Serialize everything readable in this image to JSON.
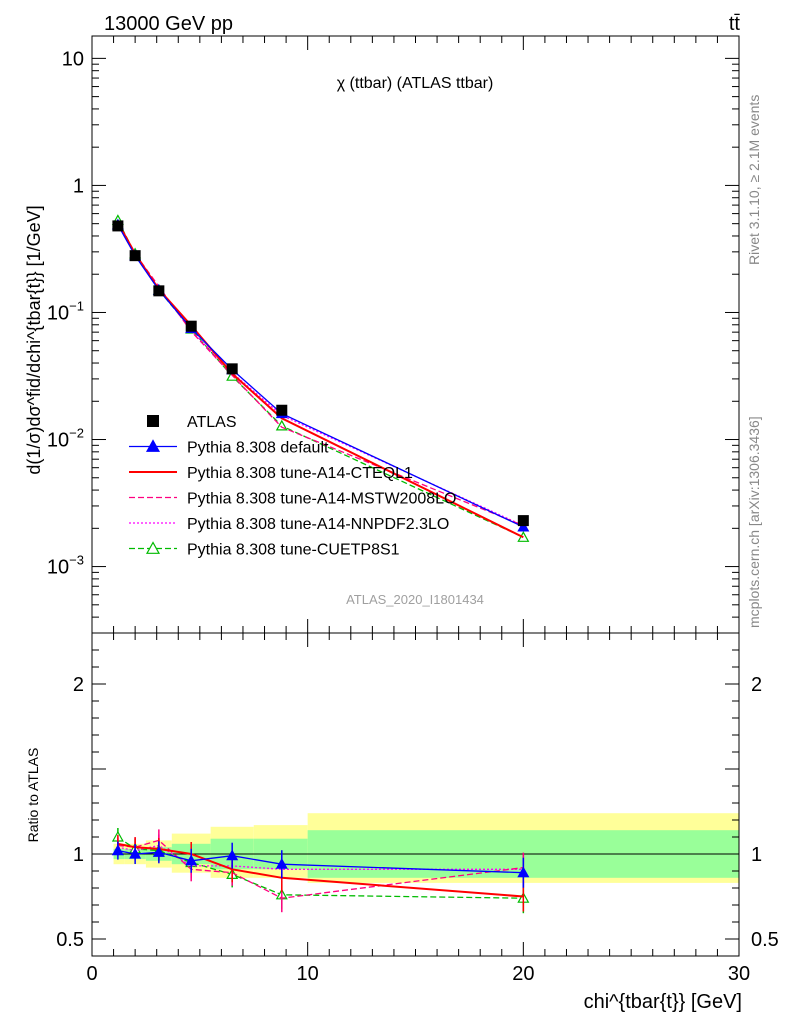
{
  "header": {
    "energy_label": "13000 GeV pp",
    "process_label": "tt̄"
  },
  "side_labels": {
    "rivet": "Rivet 3.1.10, ≥ 2.1M events",
    "mcplots": "mcplots.cern.ch [arXiv:1306.3436]"
  },
  "chart_data": [
    {
      "type": "line",
      "panel": "main",
      "title": "χ (ttbar) (ATLAS ttbar)",
      "watermark": "ATLAS_2020_I1801434",
      "ylabel": "d(1/σ)dσ^fid/dchi^{tbar{t}} [1/GeV]",
      "yscale": "log",
      "xlim": [
        0,
        30
      ],
      "ylim": [
        0.0003,
        15
      ],
      "yticks": [
        {
          "v": 10,
          "label": "10"
        },
        {
          "v": 1,
          "label": "1"
        },
        {
          "v": 0.1,
          "label": "10^-1"
        },
        {
          "v": 0.01,
          "label": "10^-2"
        },
        {
          "v": 0.001,
          "label": "10^-3"
        }
      ],
      "legend_position": "bottom-left",
      "data": {
        "x": [
          1.2,
          2.0,
          3.1,
          4.6,
          6.5,
          8.8,
          20.0
        ],
        "xerr": [
          [
            1.0,
            1.5
          ],
          [
            1.5,
            2.5
          ],
          [
            2.5,
            3.7
          ],
          [
            3.7,
            5.5
          ],
          [
            5.5,
            7.5
          ],
          [
            7.5,
            10.0
          ],
          [
            10.0,
            30.0
          ]
        ],
        "atlas": [
          0.48,
          0.28,
          0.148,
          0.078,
          0.036,
          0.017,
          0.0023
        ]
      },
      "series": [
        {
          "name": "ATLAS",
          "key": "atlas",
          "color": "#000000",
          "marker": "square",
          "line": "none"
        },
        {
          "name": "Pythia 8.308 default",
          "key": "default",
          "color": "#0000ff",
          "marker": "triangle",
          "line": "solid",
          "values": [
            0.49,
            0.28,
            0.15,
            0.075,
            0.0355,
            0.016,
            0.00205
          ]
        },
        {
          "name": "Pythia 8.308 tune-A14-CTEQL1",
          "key": "cteql1",
          "color": "#ff0000",
          "marker": "none",
          "line": "solid",
          "values": [
            0.51,
            0.29,
            0.152,
            0.079,
            0.033,
            0.0147,
            0.0017
          ]
        },
        {
          "name": "Pythia 8.308 tune-A14-MSTW2008LO",
          "key": "mstw",
          "color": "#ff0080",
          "marker": "none",
          "line": "dashed",
          "values": [
            0.505,
            0.29,
            0.16,
            0.071,
            0.032,
            0.0125,
            0.0021
          ]
        },
        {
          "name": "Pythia 8.308 tune-A14-NNPDF2.3LO",
          "key": "nnpdf",
          "color": "#ff00ff",
          "marker": "none",
          "line": "dotted",
          "values": [
            0.5,
            0.285,
            0.155,
            0.072,
            0.0335,
            0.0155,
            0.0021
          ]
        },
        {
          "name": "Pythia 8.308 tune-CUETP8S1",
          "key": "cuetp",
          "color": "#00bb00",
          "marker": "open-triangle",
          "line": "dashed",
          "values": [
            0.53,
            0.29,
            0.15,
            0.074,
            0.0315,
            0.0128,
            0.0017
          ]
        }
      ]
    },
    {
      "type": "line",
      "panel": "ratio",
      "ylabel": "Ratio to ATLAS",
      "xlabel": "chi^{tbar{t}} [GeV]",
      "xlim": [
        0,
        30
      ],
      "ylim": [
        0.4,
        2.3
      ],
      "xticks": [
        0,
        10,
        20,
        30
      ],
      "yticks": [
        0.5,
        1,
        2
      ],
      "uncertainty_bands": {
        "bin_edges": [
          1.0,
          1.5,
          2.5,
          3.7,
          5.5,
          7.5,
          10.0,
          30.0
        ],
        "inner": [
          [
            0.97,
            1.03
          ],
          [
            0.97,
            1.03
          ],
          [
            0.96,
            1.04
          ],
          [
            0.94,
            1.06
          ],
          [
            0.91,
            1.09
          ],
          [
            0.91,
            1.09
          ],
          [
            0.86,
            1.14
          ]
        ],
        "outer": [
          [
            0.94,
            1.06
          ],
          [
            0.94,
            1.06
          ],
          [
            0.92,
            1.08
          ],
          [
            0.89,
            1.12
          ],
          [
            0.86,
            1.16
          ],
          [
            0.86,
            1.17
          ],
          [
            0.83,
            1.24
          ]
        ],
        "inner_color": "#99ff99",
        "outer_color": "#ffff99"
      },
      "series": [
        {
          "name": "Pythia 8.308 default",
          "key": "default",
          "values": [
            1.02,
            1.0,
            1.01,
            0.96,
            0.99,
            0.94,
            0.89
          ]
        },
        {
          "name": "Pythia 8.308 tune-A14-CTEQL1",
          "key": "cteql1",
          "values": [
            1.06,
            1.04,
            1.03,
            1.0,
            0.91,
            0.86,
            0.75
          ]
        },
        {
          "name": "Pythia 8.308 tune-A14-MSTW2008LO",
          "key": "mstw",
          "values": [
            1.05,
            1.04,
            1.08,
            0.91,
            0.89,
            0.74,
            0.92
          ]
        },
        {
          "name": "Pythia 8.308 tune-A14-NNPDF2.3LO",
          "key": "nnpdf",
          "values": [
            1.04,
            1.02,
            1.05,
            0.93,
            0.93,
            0.91,
            0.91
          ]
        },
        {
          "name": "Pythia 8.308 tune-CUETP8S1",
          "key": "cuetp",
          "values": [
            1.1,
            1.03,
            1.02,
            0.95,
            0.88,
            0.76,
            0.74
          ]
        }
      ]
    }
  ]
}
